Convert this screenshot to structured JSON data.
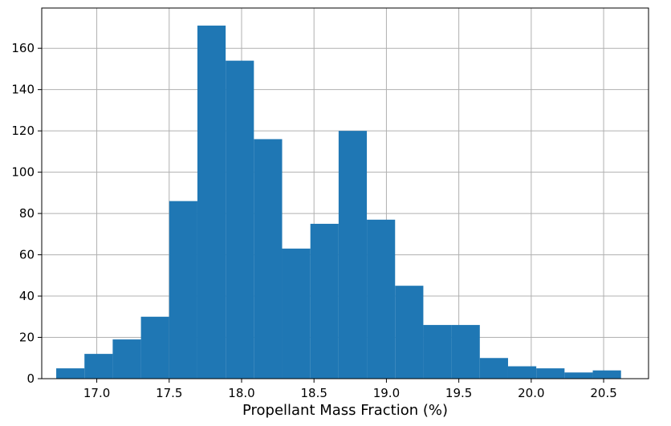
{
  "chart_data": {
    "type": "bar",
    "subtype": "histogram",
    "title": "",
    "xlabel": "Propellant Mass Fraction (%)",
    "ylabel": "",
    "xlim": [
      16.62,
      20.81
    ],
    "ylim": [
      0,
      179.5
    ],
    "grid": true,
    "bar_color": "#1f77b4",
    "grid_color": "#b0b0b0",
    "x_ticks": [
      17.0,
      17.5,
      18.0,
      18.5,
      19.0,
      19.5,
      20.0,
      20.5
    ],
    "x_tick_labels": [
      "17.0",
      "17.5",
      "18.0",
      "18.5",
      "19.0",
      "19.5",
      "20.0",
      "20.5"
    ],
    "y_ticks": [
      0,
      20,
      40,
      60,
      80,
      100,
      120,
      140,
      160
    ],
    "y_tick_labels": [
      "0",
      "20",
      "40",
      "60",
      "80",
      "100",
      "120",
      "140",
      "160"
    ],
    "bin_edges": [
      16.72,
      16.915,
      17.11,
      17.305,
      17.5,
      17.695,
      17.89,
      18.085,
      18.28,
      18.475,
      18.67,
      18.865,
      19.06,
      19.255,
      19.45,
      19.645,
      19.84,
      20.035,
      20.23,
      20.425,
      20.62
    ],
    "counts": [
      5,
      12,
      19,
      30,
      86,
      171,
      154,
      116,
      63,
      75,
      120,
      77,
      45,
      26,
      26,
      10,
      6,
      5,
      3,
      4
    ]
  }
}
